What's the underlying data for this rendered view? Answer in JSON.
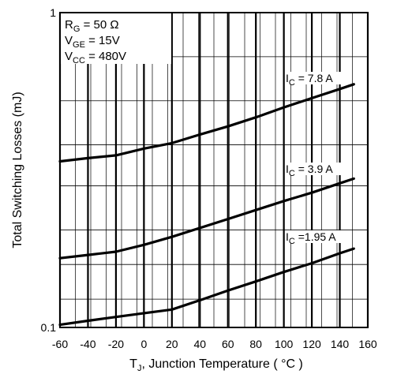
{
  "chart_data": {
    "type": "line",
    "x_scale": "linear",
    "y_scale": "log",
    "xlim": [
      -60,
      160
    ],
    "ylim": [
      0.1,
      1
    ],
    "xticks": [
      -60,
      -40,
      -20,
      0,
      20,
      40,
      60,
      80,
      100,
      120,
      140,
      160
    ],
    "xtick_labels": [
      "-60",
      "-40",
      "-20",
      "0",
      "20",
      "40",
      "60",
      "80",
      "100",
      "120",
      "140",
      "160"
    ],
    "yticks": [
      0.1,
      1
    ],
    "ytick_labels": [
      "0.1",
      "1"
    ],
    "xlabel": {
      "main": "T",
      "sub": "J",
      "rest": ", Junction Temperature ( °C )"
    },
    "ylabel": "Total Switching Losses (mJ)",
    "grid": true,
    "conditions": [
      {
        "main": "R",
        "sub": "G",
        "value": "= 50 Ω"
      },
      {
        "main": "V",
        "sub": "GE",
        "value": "= 15V"
      },
      {
        "main": "V",
        "sub": "CC",
        "value": "= 480V"
      }
    ],
    "series": [
      {
        "label_main": "I",
        "label_sub": "C",
        "label_value": "= 7.8 A",
        "x": [
          -60,
          -40,
          -20,
          0,
          20,
          40,
          60,
          80,
          100,
          120,
          140,
          150
        ],
        "y": [
          0.337,
          0.345,
          0.352,
          0.37,
          0.385,
          0.41,
          0.435,
          0.465,
          0.5,
          0.535,
          0.572,
          0.592
        ]
      },
      {
        "label_main": "I",
        "label_sub": "C",
        "label_value": "= 3.9 A",
        "x": [
          -60,
          -40,
          -20,
          0,
          20,
          40,
          60,
          80,
          100,
          120,
          140,
          150
        ],
        "y": [
          0.166,
          0.17,
          0.174,
          0.183,
          0.194,
          0.207,
          0.221,
          0.236,
          0.252,
          0.268,
          0.287,
          0.297
        ]
      },
      {
        "label_main": "I",
        "label_sub": "C",
        "label_value": "=1.95 A",
        "x": [
          -60,
          -40,
          -20,
          0,
          20,
          40,
          60,
          80,
          100,
          120,
          140,
          150
        ],
        "y": [
          0.102,
          0.105,
          0.108,
          0.111,
          0.114,
          0.122,
          0.131,
          0.14,
          0.15,
          0.16,
          0.172,
          0.178
        ]
      }
    ]
  }
}
